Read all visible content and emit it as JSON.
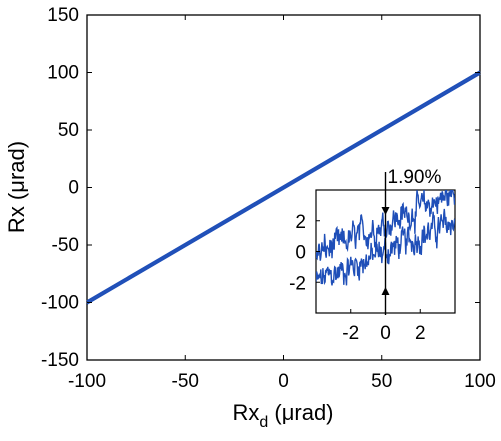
{
  "chart_data": [
    {
      "type": "line",
      "title": "",
      "xlabel": {
        "main": "Rx",
        "sub": "d",
        "unit": " (μrad)"
      },
      "ylabel": "Rx (μrad)",
      "xlim": [
        -100,
        100
      ],
      "ylim": [
        -150,
        150
      ],
      "x_ticks": [
        -100,
        -50,
        0,
        50,
        100
      ],
      "y_ticks": [
        -150,
        -100,
        -50,
        0,
        50,
        100,
        150
      ],
      "grid": false,
      "series": [
        {
          "color": "#1f4fb8",
          "x": [
            -100,
            100
          ],
          "y": [
            -99.0,
            101.0
          ]
        },
        {
          "color": "#1f4fb8",
          "x": [
            -100,
            100
          ],
          "y": [
            -101.0,
            99.0
          ]
        }
      ]
    },
    {
      "type": "line",
      "role": "inset",
      "xlim": [
        -4,
        4
      ],
      "ylim": [
        -4,
        4
      ],
      "x_ticks": [
        -2,
        0,
        2
      ],
      "y_ticks": [
        -2,
        0,
        2
      ],
      "grid": false,
      "annotation": {
        "text": "1.90%",
        "x": 0
      },
      "series": [
        {
          "color": "#1f4fb8",
          "x": [
            -4,
            4
          ],
          "y": [
            -2.0,
            2.0
          ],
          "noise": 0.8
        },
        {
          "color": "#1f4fb8",
          "x": [
            -4,
            4
          ],
          "y": [
            -0.2,
            3.8
          ],
          "noise": 0.8
        }
      ]
    }
  ]
}
